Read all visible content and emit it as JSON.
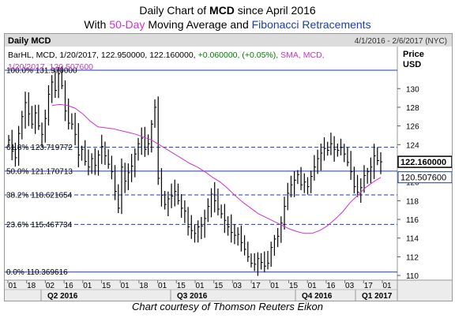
{
  "title": {
    "pre": "Daily Chart of ",
    "bold": "MCD",
    "post": " since April 2016",
    "line2_pre": "With ",
    "line2_ma": "50-Day",
    "line2_mid": " Moving Average and ",
    "line2_fib": "Fibonacci Retracements"
  },
  "panel_label": "Daily MCD",
  "date_range": "4/1/2016 - 2/6/2017 (NYC)",
  "price_header": "Price",
  "currency": "USD",
  "footer": "Chart courtesy of Thomson Reuters Eikon",
  "colors": {
    "bars": "#000000",
    "sma": "#cc33cc",
    "fib": "#1a3cb4",
    "price_box": "#000000",
    "sma_box": "#1a3cb4"
  },
  "chart_data": {
    "type": "line",
    "legend": {
      "bar_label": "BarHL, MCD, 1/20/2017, 122.950000, 122.160000,",
      "bar_change": "+0.060000, (+0.05%),",
      "sma_label": "SMA, MCD,",
      "sma_value_label": "1/20/2017, 120.507600"
    },
    "ylim": [
      109.5,
      134.5
    ],
    "yticks": [
      110,
      112,
      114,
      116,
      118,
      120,
      122,
      124,
      126,
      128,
      130
    ],
    "last_price": "122.160000",
    "sma_last": "120.507600",
    "fib_levels": [
      {
        "pct": "0.0%",
        "value": "110.369616"
      },
      {
        "pct": "23.6%",
        "value": "115.467734"
      },
      {
        "pct": "38.2%",
        "value": "118.621654"
      },
      {
        "pct": "50.0%",
        "value": "121.170713"
      },
      {
        "pct": "61.8%",
        "value": "123.719772"
      },
      {
        "pct": "100.0%",
        "value": "131.970000"
      }
    ],
    "xticks": [
      "01",
      "18",
      "02",
      "16",
      "01",
      "15",
      "01",
      "18",
      "01",
      "15",
      "01",
      "15",
      "03",
      "17",
      "01",
      "15",
      "01",
      "16",
      "03",
      "17",
      "01"
    ],
    "quarters": [
      "Q2 2016",
      "Q3 2016",
      "Q4 2016",
      "Q1 2017"
    ],
    "series": [
      {
        "name": "MCD",
        "type": "bar_hl",
        "close": [
          124.5,
          123.3,
          122.6,
          125.2,
          127.0,
          128.5,
          127.3,
          126.2,
          127.4,
          126.0,
          125.1,
          126.8,
          129.4,
          130.7,
          129.8,
          131.6,
          130.3,
          127.6,
          126.3,
          126.2,
          125.1,
          122.9,
          123.5,
          122.2,
          121.6,
          122.5,
          121.8,
          122.9,
          123.8,
          122.8,
          121.9,
          121.1,
          119.0,
          117.2,
          121.6,
          120.1,
          121.0,
          121.7,
          123.0,
          124.1,
          124.7,
          123.5,
          124.1,
          126.2,
          128.0,
          120.4,
          118.6,
          117.6,
          118.2,
          118.5,
          119.0,
          118.0,
          117.2,
          116.9,
          115.2,
          114.8,
          114.5,
          115.2,
          115.3,
          116.1,
          117.4,
          118.7,
          118.0,
          117.1,
          116.6,
          115.9,
          115.2,
          114.6,
          114.3,
          114.4,
          113.5,
          112.8,
          112.0,
          111.3,
          111.2,
          111.8,
          111.4,
          111.0,
          111.3,
          113.0,
          113.9,
          114.2,
          115.6,
          117.4,
          118.8,
          119.7,
          120.2,
          120.8,
          119.7,
          120.0,
          119.5,
          120.6,
          121.6,
          122.5,
          123.1,
          123.6,
          123.4,
          124.1,
          123.5,
          123.4,
          123.7,
          123.0,
          122.1,
          121.1,
          119.5,
          118.9,
          119.4,
          120.7,
          121.1,
          121.6,
          122.8,
          122.3,
          122.16
        ]
      },
      {
        "name": "SMA",
        "type": "line",
        "values": [
          128.2,
          128.3,
          128.2,
          127.9,
          127.3,
          126.5,
          125.9,
          125.8,
          125.7,
          125.5,
          125.3,
          125.1,
          124.8,
          124.5,
          124.0,
          123.5,
          123.0,
          122.5,
          122.0,
          121.6,
          121.1,
          120.5,
          120.0,
          119.3,
          118.5,
          117.8,
          117.2,
          116.6,
          116.2,
          115.8,
          115.4,
          115.0,
          114.7,
          114.5,
          114.5,
          114.8,
          115.3,
          116.0,
          116.8,
          117.8,
          118.6,
          119.4,
          120.0,
          120.5
        ]
      }
    ]
  }
}
